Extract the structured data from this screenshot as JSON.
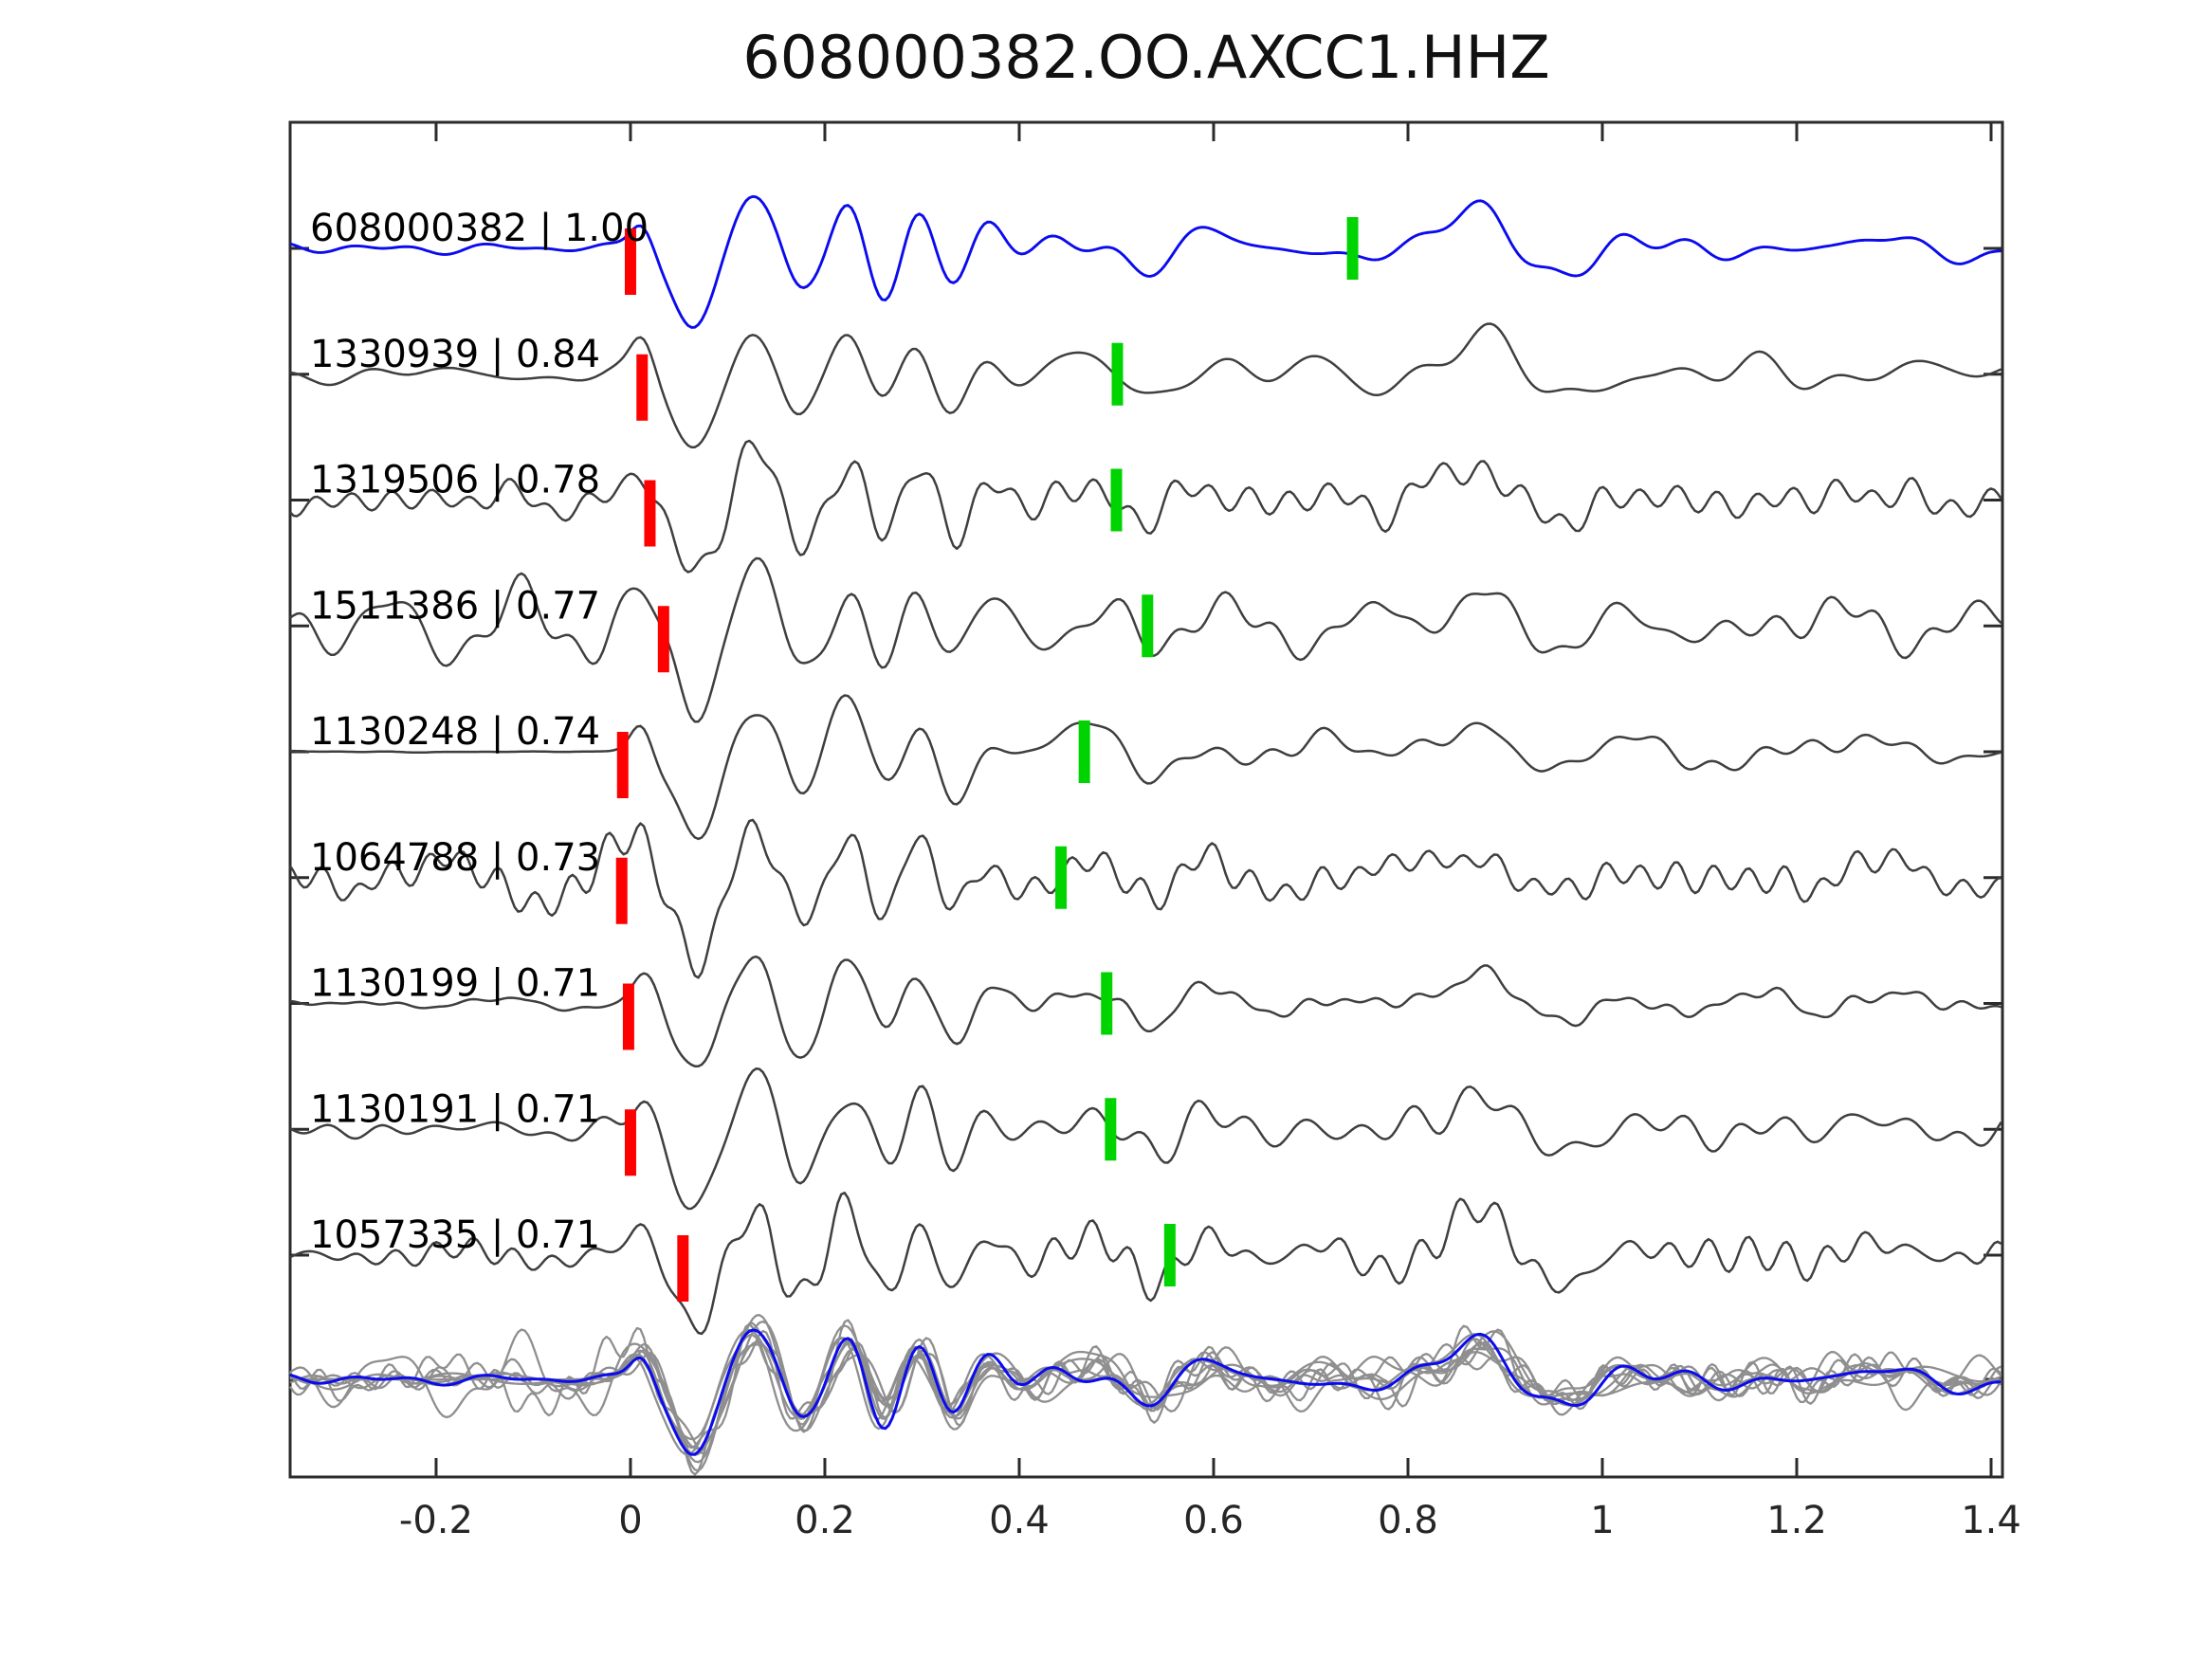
{
  "title": "608000382.OO.AXCC1.HHZ",
  "colors": {
    "background": "#ffffff",
    "axis": "#2b2b2b",
    "tick_label": "#262626",
    "trace_label": "#000000",
    "template_trace": "#0b0bee",
    "detection_trace": "#3f3f3f",
    "overlay_gray": "#8f8f8f",
    "overlay_template": "#0b0bee",
    "pick_red": "#ff0000",
    "pick_green": "#00d400"
  },
  "chart_data": {
    "type": "line",
    "title": "608000382.OO.AXCC1.HHZ",
    "xlabel": "",
    "ylabel": "",
    "xlim": [
      -0.3502,
      1.4117
    ],
    "grid": false,
    "legend": "none",
    "x_tick_values": [
      -0.2,
      0,
      0.2,
      0.4,
      0.6,
      0.8,
      1,
      1.2,
      1.4
    ],
    "x_tick_labels": [
      "-0.2",
      "0",
      "0.2",
      "0.4",
      "0.6",
      "0.8",
      "1",
      "1.2",
      "1.4"
    ],
    "description": "Template matching / matched-filter detection waveforms. Top blue trace is the template event, gray traces are detected events with cross-correlation values, red bars mark pick/trigger times near t=0, green bars mark secondary pick times, bottom row overlays all detections (gray) with the template (blue).",
    "traces": [
      {
        "id": "608000382",
        "cc": "1.00",
        "label": "608000382 | 1.00",
        "role": "template",
        "red_pick": 0.0,
        "green_pick": 0.743
      },
      {
        "id": "1330939",
        "cc": "0.84",
        "label": "1330939 | 0.84",
        "role": "detection",
        "red_pick": 0.012,
        "green_pick": 0.501
      },
      {
        "id": "1319506",
        "cc": "0.78",
        "label": "1319506 | 0.78",
        "role": "detection",
        "red_pick": 0.02,
        "green_pick": 0.5
      },
      {
        "id": "1511386",
        "cc": "0.77",
        "label": "1511386 | 0.77",
        "role": "detection",
        "red_pick": 0.034,
        "green_pick": 0.532
      },
      {
        "id": "1130248",
        "cc": "0.74",
        "label": "1130248 | 0.74",
        "role": "detection",
        "red_pick": -0.008,
        "green_pick": 0.467
      },
      {
        "id": "1064788",
        "cc": "0.73",
        "label": "1064788 | 0.73",
        "role": "detection",
        "red_pick": -0.009,
        "green_pick": 0.443
      },
      {
        "id": "1130199",
        "cc": "0.71",
        "label": "1130199 | 0.71",
        "role": "detection",
        "red_pick": -0.002,
        "green_pick": 0.49
      },
      {
        "id": "1130191",
        "cc": "0.71",
        "label": "1130191 | 0.71",
        "role": "detection",
        "red_pick": 0.0,
        "green_pick": 0.494
      },
      {
        "id": "1057335",
        "cc": "0.71",
        "label": "1057335 | 0.71",
        "role": "detection",
        "red_pick": 0.054,
        "green_pick": 0.555
      }
    ],
    "overlay_row": {
      "gray_trace_count": 9,
      "has_template_overlay": true
    }
  }
}
